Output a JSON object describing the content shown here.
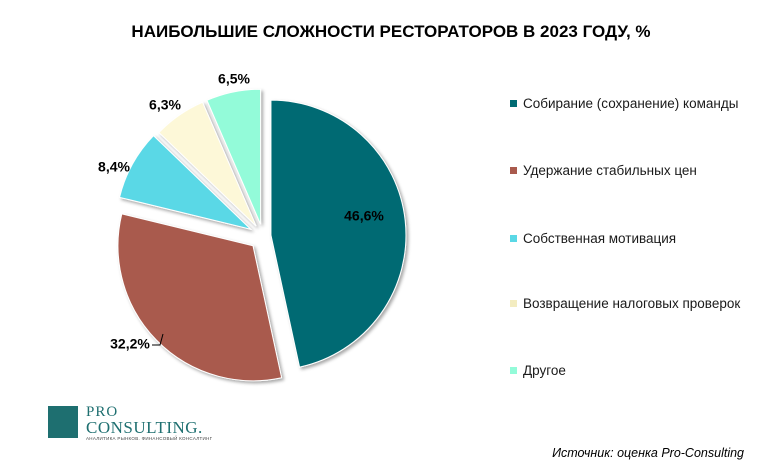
{
  "chart_data": {
    "type": "pie",
    "title": "НАИБОЛЬШИЕ СЛОЖНОСТИ РЕСТОРАТОРОВ В 2023 ГОДУ, %",
    "slices": [
      {
        "name": "Собирание (сохранение) команды",
        "value": 46.6,
        "label": "46,6%",
        "color": "#006b73"
      },
      {
        "name": "Удержание стабильных цен",
        "value": 32.2,
        "label": "32,2%",
        "color": "#a95a4d"
      },
      {
        "name": "Собственная мотивация",
        "value": 8.4,
        "label": "8,4%",
        "color": "#5ad8e6"
      },
      {
        "name": "Возвращение налоговых проверок",
        "value": 6.3,
        "label": "6,3%",
        "color": "#fdf8d8"
      },
      {
        "name": "Другое",
        "value": 6.5,
        "label": "6,5%",
        "color": "#93fbd9"
      }
    ],
    "legend_position": "right"
  },
  "logo": {
    "pro": "PRO",
    "consulting": "CONSULTING.",
    "tagline": "АНАЛИТИКА РЫНКОВ. ФИНАНСОВЫЙ КОНСАЛТИНГ"
  },
  "source": "Источник: оценка Pro-Consulting"
}
